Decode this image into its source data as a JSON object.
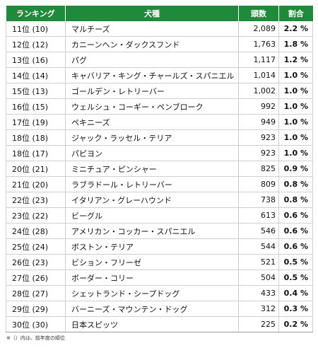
{
  "headers": {
    "rank": "ランキング",
    "breed": "犬種",
    "count": "頭数",
    "share": "割合"
  },
  "rows": [
    {
      "rank": "11位 (10)",
      "breed": "マルチーズ",
      "count": "2,089",
      "share": "2.2 %"
    },
    {
      "rank": "12位 (12)",
      "breed": "カニーンヘン・ダックスフンド",
      "count": "1,763",
      "share": "1.8 %"
    },
    {
      "rank": "13位 (16)",
      "breed": "パグ",
      "count": "1,117",
      "share": "1.2 %"
    },
    {
      "rank": "14位 (14)",
      "breed": "キャバリア・キング・チャールズ・スパニエル",
      "count": "1,014",
      "share": "1.0 %"
    },
    {
      "rank": "15位 (13)",
      "breed": "ゴールデン・レトリーバー",
      "count": "1,002",
      "share": "1.0 %"
    },
    {
      "rank": "16位 (15)",
      "breed": "ウェルシュ・コーギー・ペンブローク",
      "count": "992",
      "share": "1.0 %"
    },
    {
      "rank": "17位 (19)",
      "breed": "ペキニーズ",
      "count": "949",
      "share": "1.0 %"
    },
    {
      "rank": "18位 (18)",
      "breed": "ジャック・ラッセル・テリア",
      "count": "923",
      "share": "1.0 %"
    },
    {
      "rank": "18位 (17)",
      "breed": "パピヨン",
      "count": "923",
      "share": "1.0 %"
    },
    {
      "rank": "20位 (21)",
      "breed": "ミニチュア・ピンシャー",
      "count": "825",
      "share": "0.9 %"
    },
    {
      "rank": "21位 (20)",
      "breed": "ラブラドール・レトリーバー",
      "count": "809",
      "share": "0.8 %"
    },
    {
      "rank": "22位 (23)",
      "breed": "イタリアン・グレーハウンド",
      "count": "738",
      "share": "0.8 %"
    },
    {
      "rank": "23位 (22)",
      "breed": "ビーグル",
      "count": "613",
      "share": "0.6 %"
    },
    {
      "rank": "24位 (28)",
      "breed": "アメリカン・コッカー・スパニエル",
      "count": "546",
      "share": "0.6 %"
    },
    {
      "rank": "25位 (24)",
      "breed": "ボストン・テリア",
      "count": "544",
      "share": "0.6 %"
    },
    {
      "rank": "26位 (23)",
      "breed": "ビション・フリーゼ",
      "count": "521",
      "share": "0.5 %"
    },
    {
      "rank": "27位 (26)",
      "breed": "ボーダー・コリー",
      "count": "504",
      "share": "0.5 %"
    },
    {
      "rank": "28位 (27)",
      "breed": "シェットランド・シープドッグ",
      "count": "433",
      "share": "0.4 %"
    },
    {
      "rank": "29位 (29)",
      "breed": "バーニーズ・マウンテン・ドッグ",
      "count": "312",
      "share": "0.3 %"
    },
    {
      "rank": "30位 (30)",
      "breed": "日本スピッツ",
      "count": "225",
      "share": "0.2 %"
    }
  ],
  "note": "※（）内は、前年度の順位",
  "colors": {
    "header_bg": "#1f8a3b",
    "header_text": "#ffffff",
    "grid": "#cfcfcf"
  }
}
